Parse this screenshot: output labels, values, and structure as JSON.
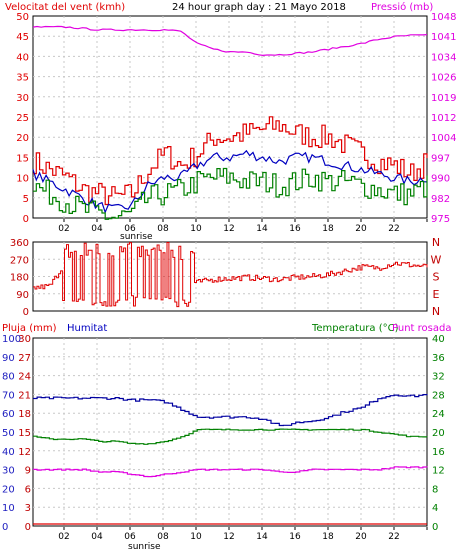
{
  "panel1": {
    "title": "24 hour graph day : 21 Mayo 2018",
    "left_label": "Velocitat del vent (kmh)",
    "right_label": "Pressió (mb)",
    "sunrise": "sunrise",
    "x_ticks": [
      "02",
      "04",
      "06",
      "08",
      "10",
      "12",
      "14",
      "16",
      "18",
      "20",
      "22",
      ""
    ],
    "left_ticks": [
      "0",
      "5",
      "10",
      "15",
      "20",
      "25",
      "30",
      "35",
      "40",
      "45",
      "50"
    ],
    "right_ticks": [
      "975",
      "982",
      "990",
      "997",
      "1004",
      "1012",
      "1019",
      "1026",
      "1034",
      "1041",
      "1048"
    ]
  },
  "panel2": {
    "left_ticks": [
      "0",
      "90",
      "180",
      "270",
      "360"
    ],
    "right_ticks": [
      "N",
      "E",
      "S",
      "W",
      "N"
    ]
  },
  "panel3": {
    "label_rain": "Pluja (mm)",
    "label_humidity": "Humitat",
    "label_temp": "Temperatura (°C)",
    "label_dew": "Punt rosada",
    "sunrise": "sunrise",
    "x_ticks": [
      "02",
      "04",
      "06",
      "08",
      "10",
      "12",
      "14",
      "16",
      "18",
      "20",
      "22",
      ""
    ],
    "rain_ticks": [
      "0",
      "3",
      "6",
      "9",
      "12",
      "15",
      "18",
      "21",
      "24",
      "27",
      "30"
    ],
    "humidity_ticks": [
      "0",
      "10",
      "20",
      "30",
      "40",
      "50",
      "60",
      "70",
      "80",
      "90",
      "100"
    ],
    "temp_ticks": [
      "0",
      "4",
      "8",
      "12",
      "16",
      "20",
      "24",
      "28",
      "32",
      "36",
      "40"
    ]
  },
  "colors": {
    "wind_max": "#e00000",
    "wind_avg": "#0000c0",
    "wind_min": "#008000",
    "pressure": "#e000e0",
    "direction": "#e00000",
    "humidity": "#0000a0",
    "temperature": "#008000",
    "dew": "#e000e0",
    "rain": "#e00000",
    "grid": "#c8c8c8",
    "rain_axis": "#c00000",
    "humidity_axis": "#2020c0",
    "temp_axis": "#008000",
    "dir_axis": "#c00000"
  },
  "chart_data": [
    {
      "type": "line",
      "x_hours": [
        0,
        1,
        2,
        3,
        4,
        5,
        6,
        7,
        8,
        9,
        10,
        11,
        12,
        13,
        14,
        15,
        16,
        17,
        18,
        19,
        20,
        21,
        22,
        23,
        24
      ],
      "series": [
        {
          "key": "wind_max",
          "values": [
            14,
            12,
            10,
            7,
            6,
            5,
            6,
            12,
            16,
            13,
            16,
            20,
            20,
            21,
            22,
            23,
            21,
            20,
            20,
            18,
            16,
            14,
            13,
            11,
            14
          ],
          "axis": "left"
        },
        {
          "key": "wind_avg",
          "values": [
            11,
            9,
            7,
            5,
            3,
            2,
            3,
            8,
            10,
            10,
            13,
            15,
            15,
            16,
            15,
            14,
            15,
            15,
            14,
            13,
            12,
            11,
            10,
            9,
            10
          ],
          "axis": "left"
        },
        {
          "key": "wind_min",
          "values": [
            8,
            6,
            4,
            2,
            1,
            0,
            1,
            5,
            6,
            7,
            9,
            10,
            10,
            9,
            9,
            8,
            9,
            10,
            9,
            9,
            8,
            7,
            6,
            6,
            8
          ],
          "axis": "left"
        },
        {
          "key": "pressure",
          "values": [
            1044,
            1044,
            1044,
            1043.5,
            1043,
            1043,
            1043,
            1043,
            1043,
            1042.5,
            1038,
            1036,
            1035,
            1035,
            1034,
            1034,
            1034.5,
            1035,
            1036,
            1037,
            1038,
            1039.5,
            1040.5,
            1041,
            1041
          ],
          "axis": "right"
        }
      ],
      "ylim_left": [
        0,
        50
      ],
      "ylim_right": [
        975,
        1048
      ]
    },
    {
      "type": "line",
      "x_hours": [
        0,
        1,
        2,
        3,
        4,
        5,
        6,
        7,
        8,
        9,
        10,
        11,
        12,
        13,
        14,
        15,
        16,
        17,
        18,
        19,
        20,
        21,
        22,
        23,
        24
      ],
      "series": [
        {
          "key": "direction",
          "values": [
            120,
            130,
            260,
            300,
            200,
            280,
            250,
            300,
            200,
            120,
            150,
            165,
            170,
            175,
            170,
            165,
            175,
            180,
            190,
            210,
            230,
            225,
            250,
            240,
            230
          ]
        }
      ],
      "ylim": [
        0,
        360
      ]
    },
    {
      "type": "line",
      "x_hours": [
        0,
        1,
        2,
        3,
        4,
        5,
        6,
        7,
        8,
        9,
        10,
        11,
        12,
        13,
        14,
        15,
        16,
        17,
        18,
        19,
        20,
        21,
        22,
        23,
        24
      ],
      "series": [
        {
          "key": "humidity",
          "values": [
            68,
            68,
            68,
            68,
            68,
            68,
            67,
            67,
            66,
            62,
            58,
            58,
            58,
            58,
            57,
            53,
            55,
            56,
            58,
            61,
            63,
            68,
            70,
            69,
            70
          ],
          "axis": "humidity"
        },
        {
          "key": "temperature",
          "values": [
            19,
            18.5,
            18.5,
            18.5,
            18,
            18,
            17.5,
            17.5,
            18,
            19,
            20.5,
            20.5,
            20.5,
            20.5,
            20.5,
            20.5,
            20.5,
            20.5,
            20.5,
            20.5,
            20.5,
            20,
            19.5,
            19,
            19
          ],
          "axis": "temp"
        },
        {
          "key": "dew",
          "values": [
            12,
            12,
            12,
            12,
            11.5,
            11.5,
            11,
            10.5,
            11,
            11.5,
            12,
            12,
            12,
            12,
            12,
            11.5,
            11.5,
            12,
            12,
            12,
            12,
            12,
            12.5,
            12.5,
            12.5
          ],
          "axis": "temp"
        },
        {
          "key": "rain",
          "values": [
            0,
            0,
            0,
            0,
            0,
            0,
            0,
            0,
            0,
            0,
            0,
            0,
            0,
            0,
            0,
            0,
            0,
            0,
            0,
            0,
            0,
            0,
            0,
            0,
            0
          ],
          "axis": "rain"
        }
      ],
      "ylim_rain": [
        0,
        30
      ],
      "ylim_humidity": [
        0,
        100
      ],
      "ylim_temp": [
        0,
        40
      ]
    }
  ]
}
